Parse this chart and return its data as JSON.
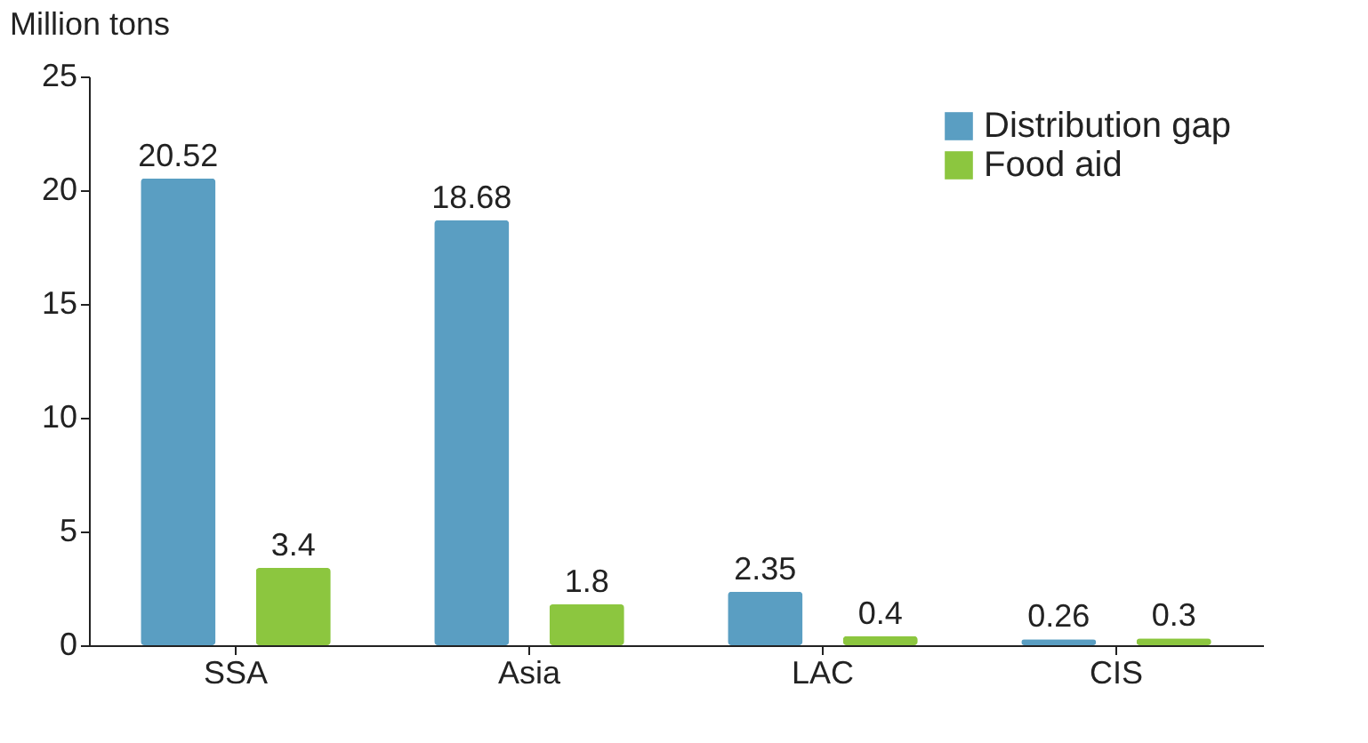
{
  "chart_data": {
    "type": "bar",
    "ylabel": "Million tons",
    "categories": [
      "SSA",
      "Asia",
      "LAC",
      "CIS"
    ],
    "series": [
      {
        "name": "Distribution gap",
        "color": "#5a9ec2",
        "values": [
          20.52,
          18.68,
          2.35,
          0.26
        ]
      },
      {
        "name": "Food aid",
        "color": "#8cc63f",
        "values": [
          3.4,
          1.8,
          0.4,
          0.3
        ]
      }
    ],
    "ylim": [
      0,
      25
    ],
    "yticks": [
      0,
      5,
      10,
      15,
      20,
      25
    ],
    "grid": false,
    "legend": "top right",
    "data_labels": true
  }
}
